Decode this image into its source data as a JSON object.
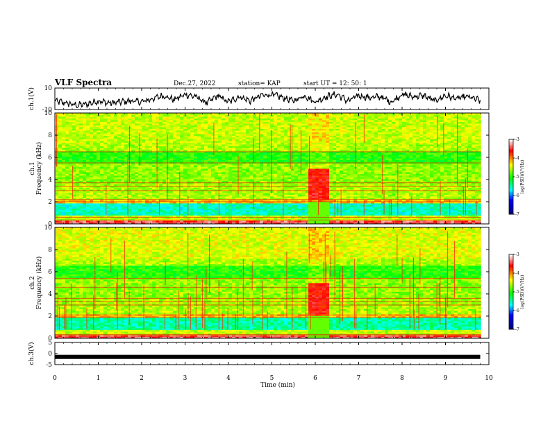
{
  "header": {
    "title": "VLF Spectra",
    "date": "Dec.27, 2022",
    "station": "station= KAP",
    "start": "start  UT =  12: 50: 1"
  },
  "chart_data": [
    {
      "type": "line",
      "panel": "ch1_waveform",
      "ylabel": "ch.1(V)",
      "ylim": [
        -10,
        10
      ],
      "yticks": [
        "10",
        "-10"
      ],
      "xlim": [
        0,
        10
      ],
      "description_free": true,
      "x": [
        0,
        0.25,
        0.5,
        0.75,
        1,
        1.25,
        1.5,
        1.75,
        2,
        2.25,
        2.5,
        2.75,
        3,
        3.25,
        3.5,
        3.75,
        4,
        4.25,
        4.5,
        4.75,
        5,
        5.25,
        5.5,
        5.75,
        6,
        6.25,
        6.5,
        6.75,
        7,
        7.25,
        7.5,
        7.75,
        8,
        8.25,
        8.5,
        8.75,
        9,
        9.25,
        9.5,
        9.75,
        9.8
      ],
      "y": [
        -2,
        -4,
        -6,
        -5,
        -2,
        -4,
        -3,
        -2,
        -3,
        0,
        3,
        -1,
        4,
        2,
        -4,
        3,
        -3,
        2,
        -2,
        3,
        4,
        1,
        -2,
        3,
        -3,
        2,
        4,
        -2,
        3,
        1,
        2,
        -3,
        4,
        2,
        3,
        -2,
        3,
        0,
        2,
        -1,
        -2
      ]
    },
    {
      "type": "heatmap",
      "panel": "ch1_spectrogram",
      "ylabel": "ch.1\nFrequency  (kHz)",
      "ylim": [
        0,
        10
      ],
      "yticks": [
        "0",
        "2",
        "4",
        "6",
        "8",
        "10"
      ],
      "xlim": [
        0,
        10
      ],
      "colorbar": {
        "label": "log(PSD)(V²/Hz)",
        "range": [
          -7,
          -3
        ],
        "ticks": [
          "-3",
          "-4",
          "-5",
          "-6",
          "-7"
        ]
      }
    },
    {
      "type": "heatmap",
      "panel": "ch2_spectrogram",
      "ylabel": "ch.2\nFrequency  (kHz)",
      "ylim": [
        0,
        10
      ],
      "yticks": [
        "0",
        "2",
        "4",
        "6",
        "8",
        "10"
      ],
      "xlim": [
        0,
        10
      ],
      "colorbar": {
        "label": "log(PSD)(V²/Hz)",
        "range": [
          -7,
          -3
        ],
        "ticks": [
          "-3",
          "-4",
          "-5",
          "-6",
          "-7"
        ]
      }
    },
    {
      "type": "line",
      "panel": "ch3_waveform",
      "ylabel": "ch.3(V)",
      "ylim": [
        -5,
        5
      ],
      "yticks": [
        "5",
        "0",
        "-5"
      ],
      "xlim": [
        0,
        10
      ],
      "x": [
        0,
        9.8
      ],
      "y": [
        -1.5,
        -1.5
      ],
      "xlabel": "Time  (min)",
      "xticks": [
        "0",
        "1",
        "2",
        "3",
        "4",
        "5",
        "6",
        "7",
        "8",
        "9",
        "10"
      ]
    }
  ],
  "colors": {
    "low": "#000080",
    "mid_low": "#00ffff",
    "mid": "#00ff00",
    "mid_high": "#ffff00",
    "high": "#ff0000",
    "top": "#ffffff"
  }
}
